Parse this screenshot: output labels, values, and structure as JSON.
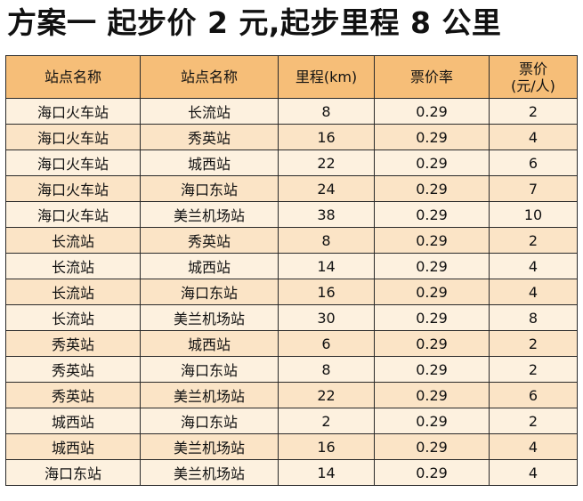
{
  "title": "方案一  起步价 2 元,起步里程 8 公里",
  "table": {
    "headers": [
      "站点名称",
      "站点名称",
      "里程(km)",
      "票价率",
      "票价",
      "(元/人)"
    ],
    "rows": [
      [
        "海口火车站",
        "长流站",
        "8",
        "0.29",
        "2"
      ],
      [
        "海口火车站",
        "秀英站",
        "16",
        "0.29",
        "4"
      ],
      [
        "海口火车站",
        "城西站",
        "22",
        "0.29",
        "6"
      ],
      [
        "海口火车站",
        "海口东站",
        "24",
        "0.29",
        "7"
      ],
      [
        "海口火车站",
        "美兰机场站",
        "38",
        "0.29",
        "10"
      ],
      [
        "长流站",
        "秀英站",
        "8",
        "0.29",
        "2"
      ],
      [
        "长流站",
        "城西站",
        "14",
        "0.29",
        "4"
      ],
      [
        "长流站",
        "海口东站",
        "16",
        "0.29",
        "4"
      ],
      [
        "长流站",
        "美兰机场站",
        "30",
        "0.29",
        "8"
      ],
      [
        "秀英站",
        "城西站",
        "6",
        "0.29",
        "2"
      ],
      [
        "秀英站",
        "海口东站",
        "8",
        "0.29",
        "2"
      ],
      [
        "秀英站",
        "美兰机场站",
        "22",
        "0.29",
        "6"
      ],
      [
        "城西站",
        "海口东站",
        "2",
        "0.29",
        "2"
      ],
      [
        "城西站",
        "美兰机场站",
        "16",
        "0.29",
        "4"
      ],
      [
        "海口东站",
        "美兰机场站",
        "14",
        "0.29",
        "4"
      ]
    ]
  }
}
